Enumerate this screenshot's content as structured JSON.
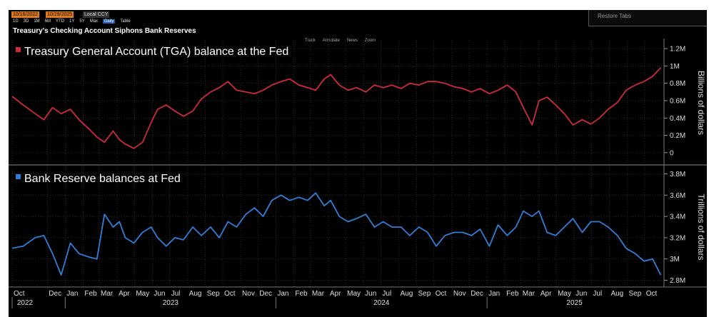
{
  "toolbar": {
    "date_start": "10/16/2022",
    "date_end": "10/29/2025",
    "currency": "Local CCY",
    "ranges": [
      "1D",
      "3D",
      "1M",
      "6M",
      "YTD",
      "1Y",
      "5Y",
      "Max",
      "Daily",
      "Table"
    ],
    "active_range": "Daily",
    "restore_tabs": "Restore Tabs"
  },
  "page_title": "Treasury's Checking Account Siphons Bank Reserves",
  "chart_tools": [
    "Track",
    "Annotate",
    "News",
    "Zoom"
  ],
  "colors": {
    "tga": "#d02a3a",
    "reserves": "#2f7fd6",
    "background": "#000000",
    "grid": "#4a4a4a"
  },
  "chart_data": [
    {
      "type": "line",
      "title": "Treasury General Account (TGA) balance at the Fed",
      "ylabel": "Billions of dollars",
      "ylim": [
        -0.1,
        1.25
      ],
      "yticks": [
        0,
        0.2,
        0.4,
        0.6,
        0.8,
        1.0,
        1.2
      ],
      "ytick_labels": [
        "0",
        "0.2M",
        "0.4M",
        "0.6M",
        "0.8M",
        "1M",
        "1.2M"
      ],
      "series": [
        {
          "color": "#d02a3a",
          "x": [
            "2022-10-01",
            "2022-10-20",
            "2022-11-10",
            "2022-11-25",
            "2022-12-10",
            "2022-12-25",
            "2023-01-10",
            "2023-01-25",
            "2023-02-10",
            "2023-02-25",
            "2023-03-10",
            "2023-03-25",
            "2023-04-05",
            "2023-04-15",
            "2023-04-30",
            "2023-05-15",
            "2023-05-30",
            "2023-06-10",
            "2023-06-25",
            "2023-07-10",
            "2023-07-25",
            "2023-08-10",
            "2023-08-25",
            "2023-09-10",
            "2023-09-25",
            "2023-10-10",
            "2023-10-25",
            "2023-11-10",
            "2023-11-25",
            "2023-12-10",
            "2023-12-25",
            "2024-01-10",
            "2024-01-25",
            "2024-02-10",
            "2024-02-25",
            "2024-03-10",
            "2024-03-25",
            "2024-04-05",
            "2024-04-20",
            "2024-05-05",
            "2024-05-20",
            "2024-06-05",
            "2024-06-20",
            "2024-07-05",
            "2024-07-20",
            "2024-08-05",
            "2024-08-20",
            "2024-09-05",
            "2024-09-20",
            "2024-10-05",
            "2024-10-20",
            "2024-11-05",
            "2024-11-20",
            "2024-12-05",
            "2024-12-20",
            "2025-01-05",
            "2025-01-20",
            "2025-02-05",
            "2025-02-20",
            "2025-03-05",
            "2025-03-20",
            "2025-04-01",
            "2025-04-15",
            "2025-04-30",
            "2025-05-15",
            "2025-05-30",
            "2025-06-15",
            "2025-06-30",
            "2025-07-15",
            "2025-07-30",
            "2025-08-15",
            "2025-08-30",
            "2025-09-15",
            "2025-09-30",
            "2025-10-15",
            "2025-10-29"
          ],
          "y": [
            0.65,
            0.55,
            0.45,
            0.38,
            0.52,
            0.45,
            0.5,
            0.38,
            0.28,
            0.18,
            0.12,
            0.25,
            0.15,
            0.1,
            0.05,
            0.12,
            0.35,
            0.5,
            0.55,
            0.48,
            0.42,
            0.48,
            0.62,
            0.7,
            0.75,
            0.82,
            0.72,
            0.7,
            0.68,
            0.72,
            0.78,
            0.82,
            0.85,
            0.78,
            0.75,
            0.72,
            0.85,
            0.9,
            0.78,
            0.72,
            0.75,
            0.7,
            0.78,
            0.75,
            0.78,
            0.74,
            0.8,
            0.78,
            0.82,
            0.82,
            0.8,
            0.76,
            0.74,
            0.7,
            0.74,
            0.68,
            0.72,
            0.78,
            0.7,
            0.52,
            0.32,
            0.6,
            0.64,
            0.55,
            0.45,
            0.32,
            0.38,
            0.33,
            0.4,
            0.5,
            0.58,
            0.72,
            0.78,
            0.82,
            0.88,
            0.98
          ]
        }
      ]
    },
    {
      "type": "line",
      "title": "Bank Reserve balances at Fed",
      "ylabel": "Trillions of dollars",
      "ylim": [
        2.75,
        3.85
      ],
      "yticks": [
        2.8,
        3.0,
        3.2,
        3.4,
        3.6,
        3.8
      ],
      "ytick_labels": [
        "2.8M",
        "3M",
        "3.2M",
        "3.4M",
        "3.6M",
        "3.8M"
      ],
      "series": [
        {
          "color": "#2f7fd6",
          "x": [
            "2022-10-01",
            "2022-10-20",
            "2022-11-10",
            "2022-11-25",
            "2022-12-10",
            "2022-12-25",
            "2023-01-10",
            "2023-01-25",
            "2023-02-10",
            "2023-02-25",
            "2023-03-10",
            "2023-03-25",
            "2023-04-05",
            "2023-04-15",
            "2023-04-30",
            "2023-05-15",
            "2023-05-30",
            "2023-06-10",
            "2023-06-25",
            "2023-07-10",
            "2023-07-25",
            "2023-08-10",
            "2023-08-25",
            "2023-09-10",
            "2023-09-25",
            "2023-10-10",
            "2023-10-25",
            "2023-11-10",
            "2023-11-25",
            "2023-12-10",
            "2023-12-25",
            "2024-01-10",
            "2024-01-25",
            "2024-02-10",
            "2024-02-25",
            "2024-03-10",
            "2024-03-25",
            "2024-04-05",
            "2024-04-20",
            "2024-05-05",
            "2024-05-20",
            "2024-06-05",
            "2024-06-20",
            "2024-07-05",
            "2024-07-20",
            "2024-08-05",
            "2024-08-20",
            "2024-09-05",
            "2024-09-20",
            "2024-10-05",
            "2024-10-20",
            "2024-11-05",
            "2024-11-20",
            "2024-12-05",
            "2024-12-20",
            "2025-01-05",
            "2025-01-20",
            "2025-02-05",
            "2025-02-20",
            "2025-03-05",
            "2025-03-20",
            "2025-04-01",
            "2025-04-15",
            "2025-04-30",
            "2025-05-15",
            "2025-05-30",
            "2025-06-15",
            "2025-06-30",
            "2025-07-15",
            "2025-07-30",
            "2025-08-15",
            "2025-08-30",
            "2025-09-15",
            "2025-09-30",
            "2025-10-15",
            "2025-10-29"
          ],
          "y": [
            3.1,
            3.12,
            3.2,
            3.22,
            3.05,
            2.85,
            3.15,
            3.05,
            3.02,
            3.0,
            3.42,
            3.3,
            3.35,
            3.2,
            3.15,
            3.25,
            3.3,
            3.2,
            3.12,
            3.2,
            3.18,
            3.3,
            3.22,
            3.3,
            3.2,
            3.35,
            3.3,
            3.42,
            3.48,
            3.4,
            3.55,
            3.6,
            3.55,
            3.58,
            3.55,
            3.62,
            3.5,
            3.55,
            3.4,
            3.35,
            3.38,
            3.42,
            3.3,
            3.35,
            3.3,
            3.3,
            3.22,
            3.3,
            3.25,
            3.12,
            3.22,
            3.25,
            3.25,
            3.22,
            3.28,
            3.12,
            3.32,
            3.22,
            3.3,
            3.45,
            3.4,
            3.45,
            3.25,
            3.22,
            3.3,
            3.38,
            3.25,
            3.35,
            3.35,
            3.3,
            3.22,
            3.1,
            3.05,
            2.98,
            3.0,
            2.85
          ]
        }
      ]
    }
  ],
  "x_axis": {
    "months": [
      "Oct",
      "Dec",
      "Jan",
      "Feb",
      "Mar",
      "Apr",
      "May",
      "Jun",
      "Jul",
      "Aug",
      "Sep",
      "Oct",
      "Nov",
      "Dec",
      "Jan",
      "Feb",
      "Mar",
      "Apr",
      "May",
      "Jun",
      "Jul",
      "Aug",
      "Sep",
      "Oct",
      "Nov",
      "Dec",
      "Jan",
      "Feb",
      "Mar",
      "Apr",
      "May",
      "Jun",
      "Jul",
      "Aug",
      "Sep",
      "Oct"
    ],
    "month_dates": [
      "2022-10-01",
      "2022-12-01",
      "2023-01-01",
      "2023-02-01",
      "2023-03-01",
      "2023-04-01",
      "2023-05-01",
      "2023-06-01",
      "2023-07-01",
      "2023-08-01",
      "2023-09-01",
      "2023-10-01",
      "2023-11-01",
      "2023-12-01",
      "2024-01-01",
      "2024-02-01",
      "2024-03-01",
      "2024-04-01",
      "2024-05-01",
      "2024-06-01",
      "2024-07-01",
      "2024-08-01",
      "2024-09-01",
      "2024-10-01",
      "2024-11-01",
      "2024-12-01",
      "2025-01-01",
      "2025-02-01",
      "2025-03-01",
      "2025-04-01",
      "2025-05-01",
      "2025-06-01",
      "2025-07-01",
      "2025-08-01",
      "2025-09-01",
      "2025-10-01"
    ],
    "years": [
      "2022",
      "2023",
      "2024",
      "2025"
    ],
    "year_dates": [
      "2022-10-01",
      "2023-01-01",
      "2024-01-01",
      "2025-01-01"
    ],
    "range": [
      "2022-10-01",
      "2025-10-31"
    ]
  }
}
